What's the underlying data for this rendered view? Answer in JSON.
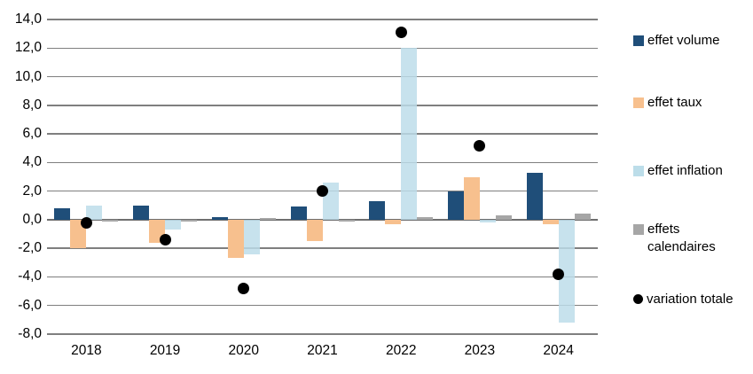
{
  "chart_data": {
    "type": "bar",
    "title": "",
    "xlabel": "",
    "ylabel": "",
    "categories": [
      "2018",
      "2019",
      "2020",
      "2021",
      "2022",
      "2023",
      "2024"
    ],
    "series": [
      {
        "name": "effet volume",
        "color": "#1F4E79",
        "translucent": false,
        "values": [
          0.8,
          1.0,
          0.2,
          0.9,
          1.3,
          2.0,
          3.3
        ]
      },
      {
        "name": "effet taux",
        "color": "#F7C08E",
        "translucent": false,
        "values": [
          -2.0,
          -1.6,
          -2.7,
          -1.5,
          -0.3,
          3.0,
          -0.3
        ]
      },
      {
        "name": "effet inflation",
        "color": "#BCDDE9",
        "translucent": true,
        "values": [
          1.0,
          -0.7,
          -2.4,
          2.6,
          12.0,
          -0.2,
          -7.2
        ]
      },
      {
        "name": "effets calendaires",
        "color": "#A6A6A6",
        "translucent": false,
        "values": [
          -0.1,
          -0.1,
          0.1,
          -0.1,
          0.2,
          0.3,
          0.4
        ]
      }
    ],
    "points_series": {
      "name": "variation totale",
      "color": "#000000",
      "values": [
        -0.2,
        -1.4,
        -4.8,
        2.0,
        13.1,
        5.2,
        -3.8
      ]
    },
    "ylim": [
      -8,
      14
    ],
    "ytick_step": 2,
    "ytick_labels": [
      "14,0",
      "12,0",
      "10,0",
      "8,0",
      "6,0",
      "4,0",
      "2,0",
      "0,0",
      "-2,0",
      "-4,0",
      "-6,0",
      "-8,0"
    ],
    "grid": true,
    "legend_position": "right",
    "gridline_color": "#7f7f7f",
    "text_color": "#000000"
  }
}
